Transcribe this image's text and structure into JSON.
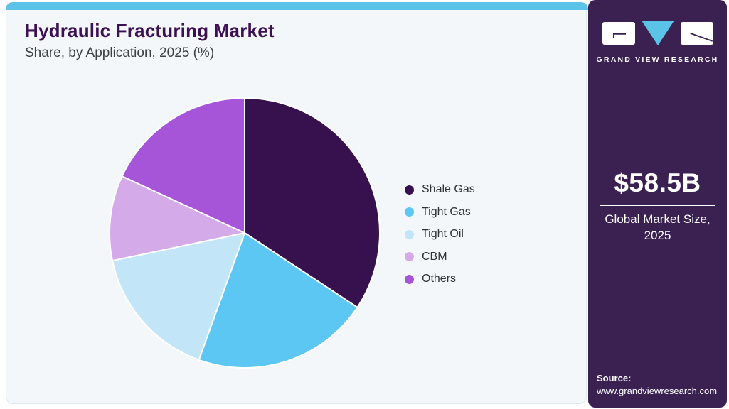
{
  "header": {
    "title": "Hydraulic Fracturing Market",
    "subtitle": "Share, by Application, 2025 (%)"
  },
  "chart_data": {
    "type": "pie",
    "title": "Hydraulic Fracturing Market Share, by Application, 2025 (%)",
    "start_angle_deg": 0,
    "direction": "clockwise",
    "legend_position": "right",
    "slices": [
      {
        "label": "Shale Gas",
        "value": 34.3,
        "color": "#37114e"
      },
      {
        "label": "Tight Gas",
        "value": 21.2,
        "color": "#5bc7f2"
      },
      {
        "label": "Tight Oil",
        "value": 16.2,
        "color": "#c2e6f8"
      },
      {
        "label": "CBM",
        "value": 10.2,
        "color": "#d4aae9"
      },
      {
        "label": "Others",
        "value": 18.1,
        "color": "#a755d8"
      }
    ]
  },
  "sidebar": {
    "logo_text": "GRAND VIEW RESEARCH",
    "market_size_value": "$58.5B",
    "market_size_label_line1": "Global Market Size,",
    "market_size_label_line2": "2025",
    "source_label": "Source:",
    "source_url": "www.grandviewresearch.com"
  },
  "colors": {
    "accent_cyan": "#5cc3e8",
    "card_bg": "#f3f7fa",
    "sidebar_bg": "#3a2152",
    "title_purple": "#3c1053",
    "pie_stroke": "#ffffff"
  }
}
